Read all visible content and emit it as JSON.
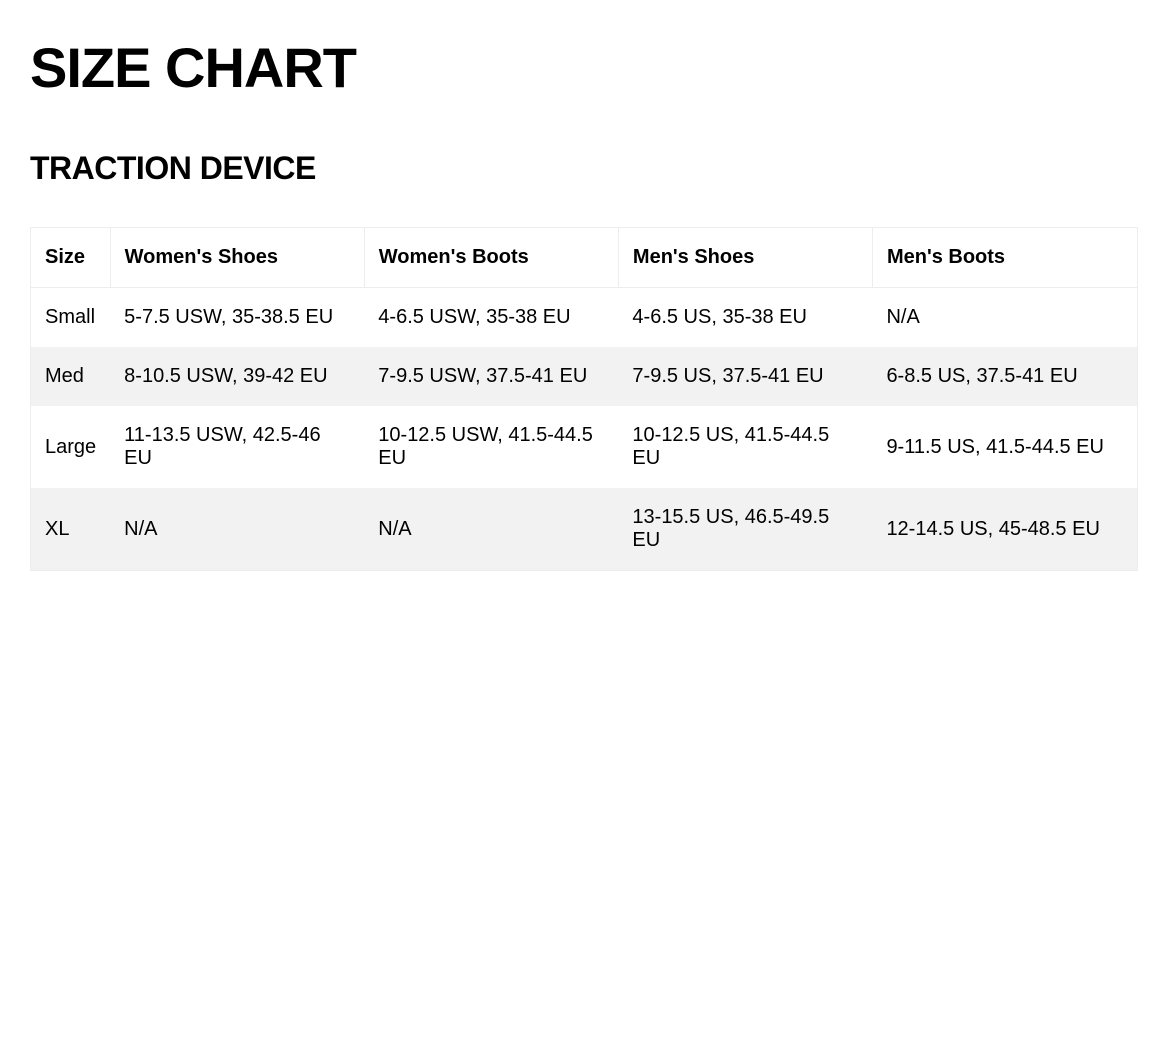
{
  "page": {
    "title": "SIZE CHART",
    "subtitle": "TRACTION DEVICE"
  },
  "table": {
    "columns": [
      {
        "key": "size",
        "label": "Size"
      },
      {
        "key": "womens_shoes",
        "label": "Women's Shoes"
      },
      {
        "key": "womens_boots",
        "label": "Women's Boots"
      },
      {
        "key": "mens_shoes",
        "label": "Men's Shoes"
      },
      {
        "key": "mens_boots",
        "label": "Men's Boots"
      }
    ],
    "rows": [
      {
        "size": "Small",
        "womens_shoes": "5-7.5 USW, 35-38.5 EU",
        "womens_boots": "4-6.5 USW, 35-38 EU",
        "mens_shoes": "4-6.5 US, 35-38 EU",
        "mens_boots": "N/A"
      },
      {
        "size": "Med",
        "womens_shoes": "8-10.5 USW, 39-42 EU",
        "womens_boots": "7-9.5 USW, 37.5-41 EU",
        "mens_shoes": "7-9.5 US, 37.5-41 EU",
        "mens_boots": "6-8.5 US, 37.5-41 EU"
      },
      {
        "size": "Large",
        "womens_shoes": "11-13.5 USW, 42.5-46 EU",
        "womens_boots": "10-12.5 USW, 41.5-44.5 EU",
        "mens_shoes": "10-12.5 US, 41.5-44.5 EU",
        "mens_boots": "9-11.5 US, 41.5-44.5 EU"
      },
      {
        "size": "XL",
        "womens_shoes": "N/A",
        "womens_boots": "N/A",
        "mens_shoes": "13-15.5 US, 46.5-49.5 EU",
        "mens_boots": "12-14.5 US, 45-48.5 EU"
      }
    ],
    "styling": {
      "header_bg": "#ffffff",
      "row_odd_bg": "#ffffff",
      "row_even_bg": "#f2f2f2",
      "border_color": "#ededed",
      "header_fontsize": 20,
      "cell_fontsize": 20,
      "header_weight": 700,
      "cell_weight": 400,
      "text_color": "#000000"
    }
  }
}
